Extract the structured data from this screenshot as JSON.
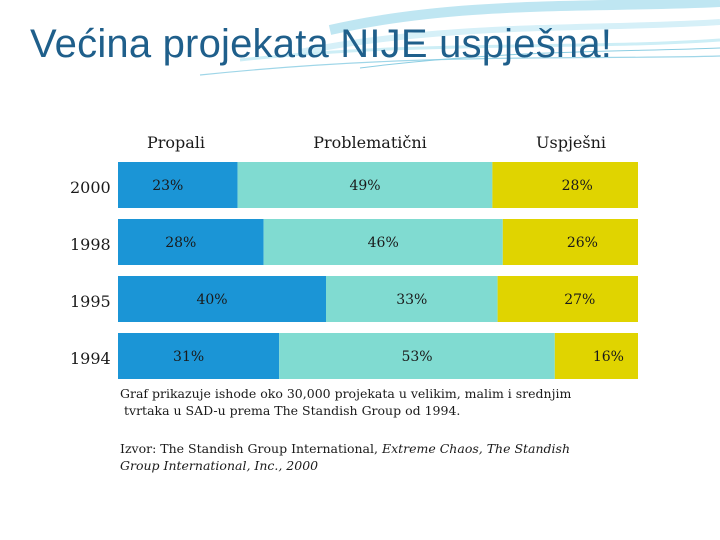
{
  "title": "Većina projekata NIJE uspješna!",
  "chart_data": {
    "type": "bar",
    "stacked": true,
    "orientation": "horizontal",
    "categories": [
      "2000",
      "1998",
      "1995",
      "1994"
    ],
    "series": [
      {
        "name": "Propali",
        "values": [
          23,
          28,
          40,
          31
        ],
        "color": "#1b95d6",
        "labels": [
          "23%",
          "28%",
          "40%",
          "31%"
        ]
      },
      {
        "name": "Problematični",
        "values": [
          49,
          46,
          33,
          53
        ],
        "color": "#80dbd1",
        "labels": [
          "49%",
          "46%",
          "33%",
          "53%"
        ]
      },
      {
        "name": "Uspješni",
        "values": [
          28,
          26,
          27,
          16
        ],
        "color": "#e0d400",
        "labels": [
          "28%",
          "26%",
          "27%",
          "16%"
        ]
      }
    ],
    "xlim": [
      0,
      100
    ],
    "legend": "top"
  },
  "note": {
    "line1": "Graf prikazuje ishode oko 30,000 projekata u velikim, malim i srednjim",
    "line2": "tvrtaka u SAD-u prema The Standish Group od 1994."
  },
  "source": {
    "prefix": "Izvor: The Standish Group International, ",
    "italic": "Extreme Chaos, The Standish Group International, Inc., 2000"
  }
}
